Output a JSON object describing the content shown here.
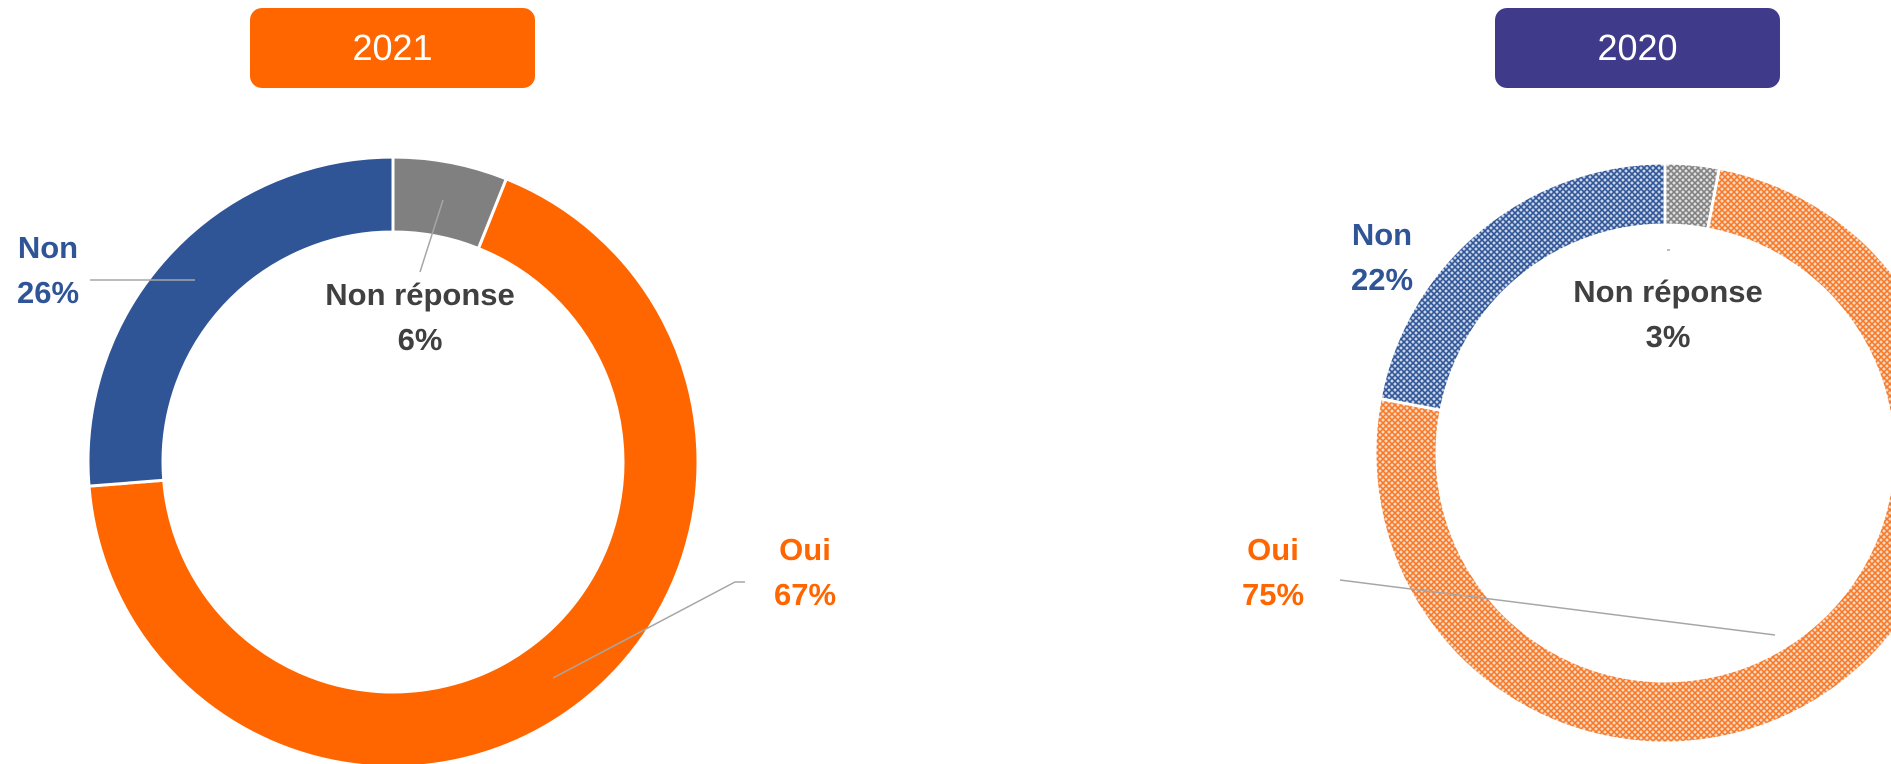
{
  "chart_data": [
    {
      "type": "pie",
      "title": "2021",
      "title_color": "#ff6600",
      "slices": [
        {
          "label": "Non réponse",
          "value": 6,
          "display": "6%",
          "color": "#808080",
          "label_color": "#404040"
        },
        {
          "label": "Oui",
          "value": 67,
          "display": "67%",
          "color": "#ff6600",
          "label_color": "#ff6600"
        },
        {
          "label": "Non",
          "value": 26,
          "display": "26%",
          "color": "#2f5597",
          "label_color": "#2f5597"
        }
      ],
      "style": "donut",
      "fill": "solid"
    },
    {
      "type": "pie",
      "title": "2020",
      "title_color": "#403a8a",
      "slices": [
        {
          "label": "Non réponse",
          "value": 3,
          "display": "3%",
          "color": "#808080",
          "label_color": "#404040"
        },
        {
          "label": "Oui",
          "value": 75,
          "display": "75%",
          "color": "#f47a2a",
          "label_color": "#ff6600"
        },
        {
          "label": "Non",
          "value": 22,
          "display": "22%",
          "color": "#2f5597",
          "label_color": "#2f5597"
        }
      ],
      "style": "donut",
      "fill": "patterned"
    }
  ]
}
